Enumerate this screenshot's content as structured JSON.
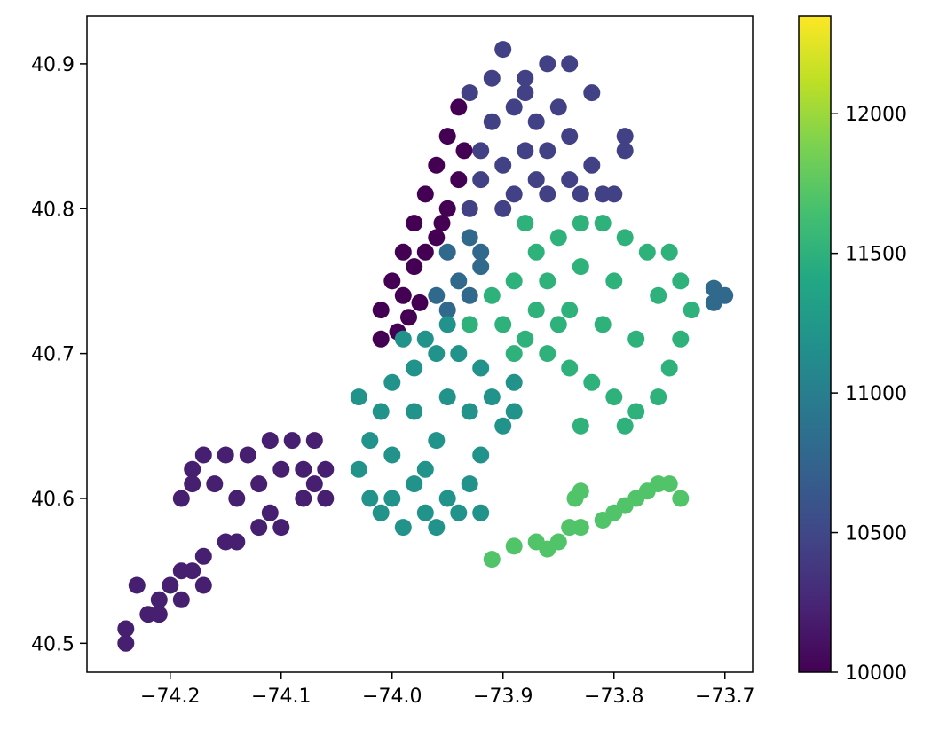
{
  "chart_data": {
    "type": "scatter",
    "title": "",
    "xlabel": "",
    "ylabel": "",
    "xlim": [
      -74.275,
      -73.675
    ],
    "ylim": [
      40.48,
      40.933
    ],
    "xticks": [
      -74.2,
      -74.1,
      -74.0,
      -73.9,
      -73.8,
      -73.7
    ],
    "xtick_labels": [
      "−74.2",
      "−74.1",
      "−74.0",
      "−73.9",
      "−73.8",
      "−73.7"
    ],
    "yticks": [
      40.5,
      40.6,
      40.7,
      40.8,
      40.9
    ],
    "ytick_labels": [
      "40.5",
      "40.6",
      "40.7",
      "40.8",
      "40.9"
    ],
    "grid": false,
    "colormap": "viridis",
    "colorbar": {
      "range": [
        10000,
        12350
      ],
      "ticks": [
        10000,
        10500,
        11000,
        11500,
        12000
      ],
      "tick_labels": [
        "10000",
        "10500",
        "11000",
        "11500",
        "12000"
      ]
    },
    "clusters": [
      {
        "value": 10000,
        "points": [
          [
            -73.94,
            40.87
          ],
          [
            -73.95,
            40.85
          ],
          [
            -73.96,
            40.83
          ],
          [
            -73.97,
            40.81
          ],
          [
            -73.98,
            40.79
          ],
          [
            -73.99,
            40.77
          ],
          [
            -74.0,
            40.75
          ],
          [
            -74.01,
            40.73
          ],
          [
            -74.01,
            40.71
          ],
          [
            -73.99,
            40.74
          ],
          [
            -73.98,
            40.76
          ],
          [
            -73.96,
            40.78
          ],
          [
            -73.95,
            40.8
          ],
          [
            -73.94,
            40.82
          ],
          [
            -73.935,
            40.84
          ],
          [
            -73.975,
            40.735
          ],
          [
            -73.985,
            40.725
          ],
          [
            -73.995,
            40.715
          ],
          [
            -73.97,
            40.77
          ],
          [
            -73.955,
            40.79
          ]
        ]
      },
      {
        "value": 10450,
        "points": [
          [
            -73.9,
            40.91
          ],
          [
            -73.91,
            40.89
          ],
          [
            -73.88,
            40.89
          ],
          [
            -73.86,
            40.9
          ],
          [
            -73.84,
            40.9
          ],
          [
            -73.82,
            40.88
          ],
          [
            -73.85,
            40.87
          ],
          [
            -73.87,
            40.86
          ],
          [
            -73.89,
            40.87
          ],
          [
            -73.91,
            40.86
          ],
          [
            -73.92,
            40.84
          ],
          [
            -73.9,
            40.83
          ],
          [
            -73.88,
            40.84
          ],
          [
            -73.86,
            40.84
          ],
          [
            -73.84,
            40.85
          ],
          [
            -73.82,
            40.83
          ],
          [
            -73.81,
            40.81
          ],
          [
            -73.84,
            40.82
          ],
          [
            -73.87,
            40.82
          ],
          [
            -73.89,
            40.81
          ],
          [
            -73.92,
            40.82
          ],
          [
            -73.93,
            40.8
          ],
          [
            -73.9,
            40.8
          ],
          [
            -73.86,
            40.81
          ],
          [
            -73.79,
            40.85
          ],
          [
            -73.79,
            40.84
          ],
          [
            -73.8,
            40.81
          ],
          [
            -73.83,
            40.81
          ],
          [
            -73.88,
            40.88
          ],
          [
            -73.93,
            40.88
          ]
        ]
      },
      {
        "value": 10200,
        "points": [
          [
            -74.24,
            40.51
          ],
          [
            -74.24,
            40.5
          ],
          [
            -74.22,
            40.52
          ],
          [
            -74.21,
            40.53
          ],
          [
            -74.2,
            40.54
          ],
          [
            -74.19,
            40.55
          ],
          [
            -74.18,
            40.55
          ],
          [
            -74.17,
            40.56
          ],
          [
            -74.15,
            40.57
          ],
          [
            -74.14,
            40.57
          ],
          [
            -74.12,
            40.58
          ],
          [
            -74.11,
            40.59
          ],
          [
            -74.1,
            40.58
          ],
          [
            -74.08,
            40.6
          ],
          [
            -74.07,
            40.61
          ],
          [
            -74.06,
            40.6
          ],
          [
            -74.08,
            40.62
          ],
          [
            -74.09,
            40.64
          ],
          [
            -74.11,
            40.64
          ],
          [
            -74.13,
            40.63
          ],
          [
            -74.15,
            40.63
          ],
          [
            -74.17,
            40.63
          ],
          [
            -74.18,
            40.62
          ],
          [
            -74.19,
            40.6
          ],
          [
            -74.18,
            40.61
          ],
          [
            -74.16,
            40.61
          ],
          [
            -74.14,
            40.6
          ],
          [
            -74.12,
            40.61
          ],
          [
            -74.23,
            40.54
          ],
          [
            -74.21,
            40.52
          ],
          [
            -74.19,
            40.53
          ],
          [
            -74.17,
            40.54
          ],
          [
            -74.07,
            40.64
          ],
          [
            -74.1,
            40.62
          ],
          [
            -74.06,
            40.62
          ]
        ]
      },
      {
        "value": 10800,
        "points": [
          [
            -73.95,
            40.77
          ],
          [
            -73.93,
            40.78
          ],
          [
            -73.92,
            40.76
          ],
          [
            -73.94,
            40.75
          ],
          [
            -73.96,
            40.74
          ],
          [
            -73.95,
            40.73
          ],
          [
            -73.93,
            40.74
          ],
          [
            -73.71,
            40.745
          ],
          [
            -73.7,
            40.74
          ],
          [
            -73.71,
            40.735
          ],
          [
            -73.92,
            40.77
          ]
        ]
      },
      {
        "value": 11200,
        "points": [
          [
            -74.03,
            40.62
          ],
          [
            -74.02,
            40.64
          ],
          [
            -74.01,
            40.66
          ],
          [
            -74.0,
            40.68
          ],
          [
            -73.98,
            40.69
          ],
          [
            -73.96,
            40.7
          ],
          [
            -73.94,
            40.7
          ],
          [
            -73.92,
            40.69
          ],
          [
            -73.91,
            40.67
          ],
          [
            -73.9,
            40.65
          ],
          [
            -73.92,
            40.63
          ],
          [
            -73.93,
            40.61
          ],
          [
            -73.95,
            40.6
          ],
          [
            -73.97,
            40.59
          ],
          [
            -73.99,
            40.58
          ],
          [
            -74.01,
            40.59
          ],
          [
            -74.02,
            40.6
          ],
          [
            -73.97,
            40.62
          ],
          [
            -73.96,
            40.64
          ],
          [
            -73.98,
            40.66
          ],
          [
            -73.95,
            40.67
          ],
          [
            -73.93,
            40.66
          ],
          [
            -73.94,
            40.59
          ],
          [
            -73.96,
            40.58
          ],
          [
            -73.92,
            40.59
          ],
          [
            -73.98,
            40.61
          ],
          [
            -74.0,
            40.63
          ],
          [
            -73.99,
            40.71
          ],
          [
            -73.97,
            40.71
          ],
          [
            -73.89,
            40.68
          ],
          [
            -73.89,
            40.66
          ],
          [
            -74.0,
            40.6
          ],
          [
            -73.95,
            40.72
          ],
          [
            -74.03,
            40.67
          ]
        ]
      },
      {
        "value": 11500,
        "points": [
          [
            -73.93,
            40.72
          ],
          [
            -73.91,
            40.74
          ],
          [
            -73.89,
            40.75
          ],
          [
            -73.87,
            40.77
          ],
          [
            -73.85,
            40.78
          ],
          [
            -73.83,
            40.79
          ],
          [
            -73.81,
            40.79
          ],
          [
            -73.79,
            40.78
          ],
          [
            -73.77,
            40.77
          ],
          [
            -73.75,
            40.77
          ],
          [
            -73.74,
            40.75
          ],
          [
            -73.73,
            40.73
          ],
          [
            -73.74,
            40.71
          ],
          [
            -73.75,
            40.69
          ],
          [
            -73.76,
            40.67
          ],
          [
            -73.78,
            40.66
          ],
          [
            -73.8,
            40.67
          ],
          [
            -73.82,
            40.68
          ],
          [
            -73.84,
            40.69
          ],
          [
            -73.86,
            40.7
          ],
          [
            -73.88,
            40.71
          ],
          [
            -73.9,
            40.72
          ],
          [
            -73.87,
            40.73
          ],
          [
            -73.84,
            40.73
          ],
          [
            -73.81,
            40.72
          ],
          [
            -73.78,
            40.71
          ],
          [
            -73.8,
            40.75
          ],
          [
            -73.83,
            40.76
          ],
          [
            -73.86,
            40.75
          ],
          [
            -73.89,
            40.7
          ],
          [
            -73.83,
            40.65
          ],
          [
            -73.76,
            40.74
          ],
          [
            -73.79,
            40.65
          ],
          [
            -73.88,
            40.79
          ],
          [
            -73.85,
            40.72
          ]
        ]
      },
      {
        "value": 11700,
        "points": [
          [
            -73.85,
            40.57
          ],
          [
            -73.84,
            40.58
          ],
          [
            -73.83,
            40.58
          ],
          [
            -73.81,
            40.585
          ],
          [
            -73.8,
            40.59
          ],
          [
            -73.79,
            40.595
          ],
          [
            -73.78,
            40.6
          ],
          [
            -73.77,
            40.605
          ],
          [
            -73.76,
            40.61
          ],
          [
            -73.75,
            40.61
          ],
          [
            -73.74,
            40.6
          ],
          [
            -73.86,
            40.565
          ],
          [
            -73.87,
            40.57
          ],
          [
            -73.83,
            40.605
          ],
          [
            -73.835,
            40.6
          ],
          [
            -73.89,
            40.567
          ],
          [
            -73.91,
            40.558
          ]
        ]
      }
    ]
  }
}
